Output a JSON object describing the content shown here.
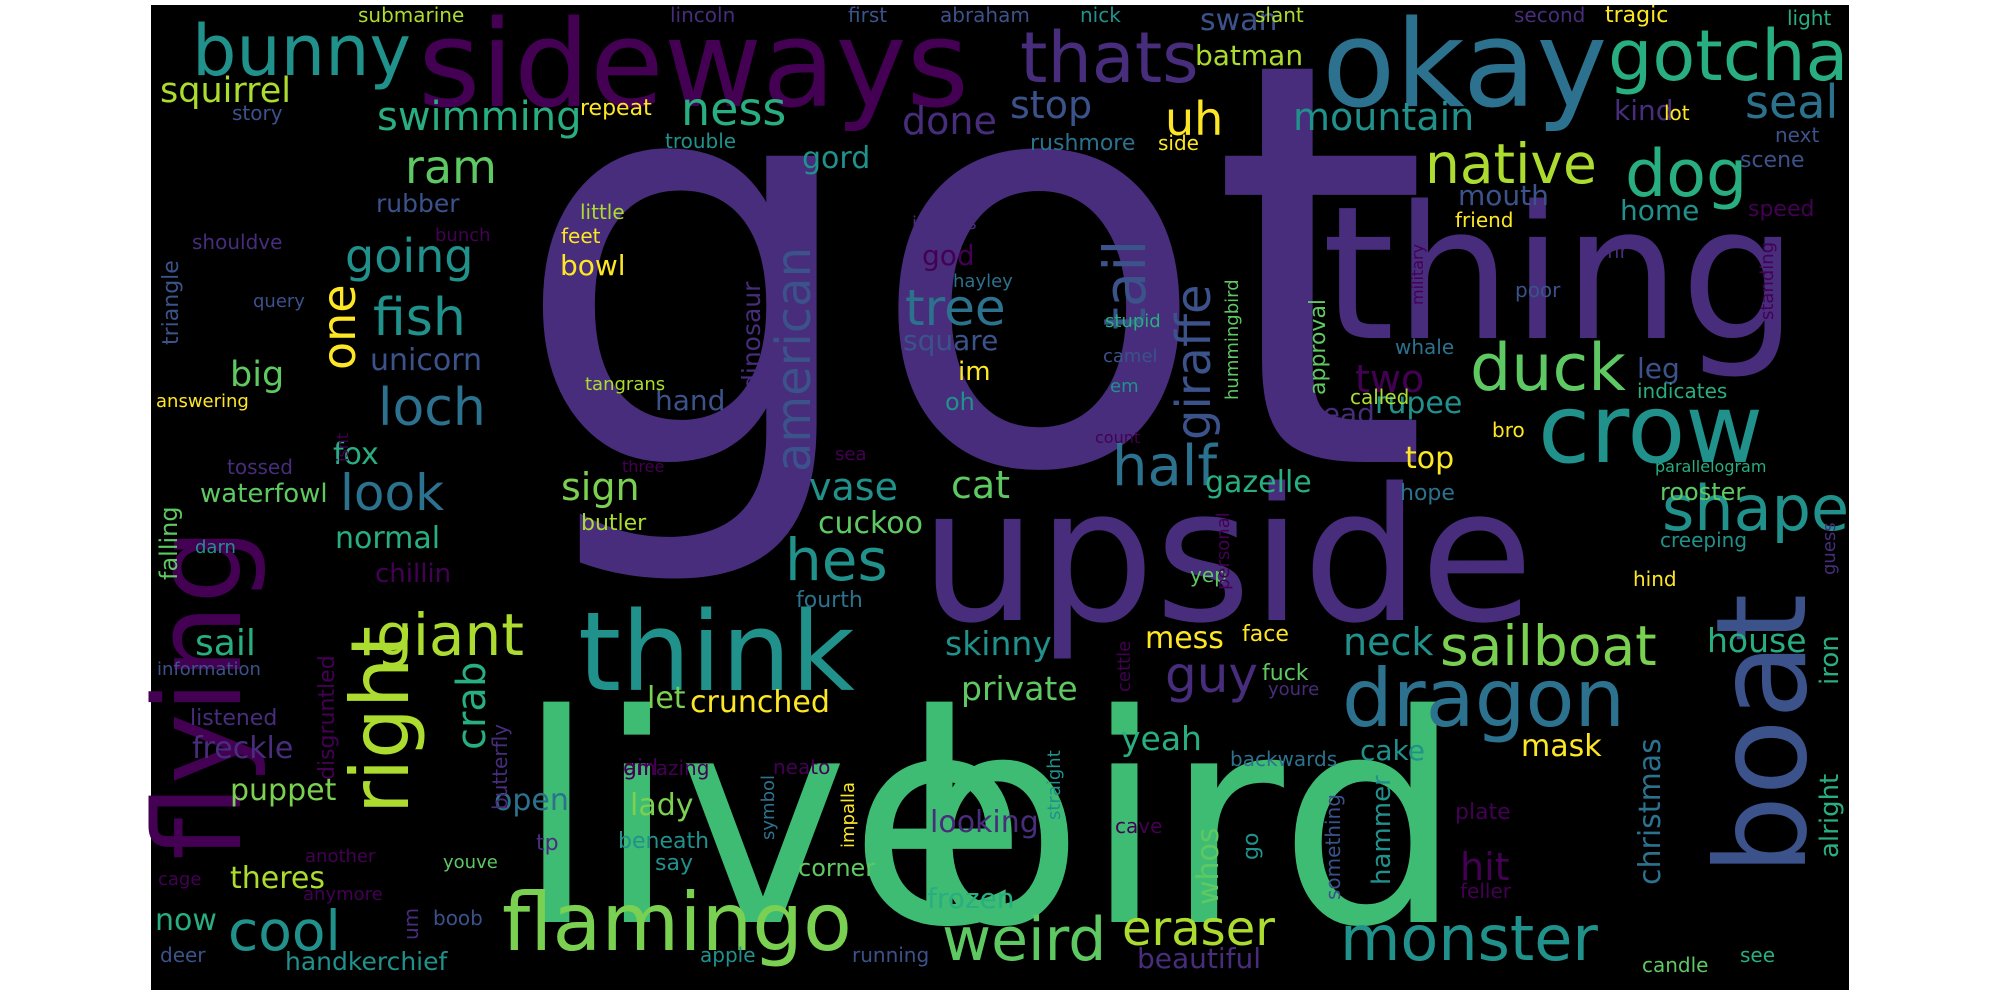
{
  "image": {
    "background": "#000000",
    "palette": [
      "#440154",
      "#472d7b",
      "#3b528b",
      "#2c728e",
      "#21918c",
      "#28ae80",
      "#5ec962",
      "#addc30",
      "#fde725"
    ],
    "words": [
      {
        "text": "got",
        "color": "#472d7b"
      },
      {
        "text": "live",
        "color": "#3fbc73"
      },
      {
        "text": "bird",
        "color": "#3fbc73"
      },
      {
        "text": "upside",
        "color": "#472d7b"
      },
      {
        "text": "thing",
        "color": "#472d7b"
      },
      {
        "text": "sideways",
        "color": "#440154"
      },
      {
        "text": "okay",
        "color": "#2c728e"
      },
      {
        "text": "flying",
        "color": "#440154"
      },
      {
        "text": "boat",
        "color": "#3b528b"
      },
      {
        "text": "think",
        "color": "#21918c"
      },
      {
        "text": "crow",
        "color": "#21918c"
      },
      {
        "text": "dragon",
        "color": "#2c728e"
      },
      {
        "text": "right",
        "color": "#addc30"
      },
      {
        "text": "flamingo",
        "color": "#7ad151"
      },
      {
        "text": "gotcha",
        "color": "#28ae80"
      },
      {
        "text": "bunny",
        "color": "#21918c"
      },
      {
        "text": "thats",
        "color": "#472d7b"
      },
      {
        "text": "dog",
        "color": "#28ae80"
      },
      {
        "text": "duck",
        "color": "#5ec962"
      },
      {
        "text": "shape",
        "color": "#21918c"
      },
      {
        "text": "monster",
        "color": "#21918c"
      },
      {
        "text": "weird",
        "color": "#5ec962"
      },
      {
        "text": "sailboat",
        "color": "#7ad151"
      },
      {
        "text": "native",
        "color": "#addc30"
      },
      {
        "text": "giraffe",
        "color": "#3b528b"
      },
      {
        "text": "tail",
        "color": "#3b528b"
      },
      {
        "text": "half",
        "color": "#2c728e"
      },
      {
        "text": "hes",
        "color": "#21918c"
      },
      {
        "text": "giant",
        "color": "#addc30"
      },
      {
        "text": "american",
        "color": "#3b528b"
      },
      {
        "text": "guy",
        "color": "#472d7b"
      },
      {
        "text": "cool",
        "color": "#21918c"
      },
      {
        "text": "loch",
        "color": "#2c728e"
      },
      {
        "text": "fish",
        "color": "#21918c"
      },
      {
        "text": "look",
        "color": "#2c728e"
      },
      {
        "text": "tree",
        "color": "#2c728e"
      },
      {
        "text": "eraser",
        "color": "#addc30"
      },
      {
        "text": "one",
        "color": "#fde725"
      },
      {
        "text": "uh",
        "color": "#fde725"
      },
      {
        "text": "ness",
        "color": "#28ae80"
      },
      {
        "text": "seal",
        "color": "#2c728e"
      },
      {
        "text": "ram",
        "color": "#5ec962"
      },
      {
        "text": "crab",
        "color": "#28ae80"
      },
      {
        "text": "going",
        "color": "#21918c"
      },
      {
        "text": "swimming",
        "color": "#28ae80"
      },
      {
        "text": "mountain",
        "color": "#21918c"
      },
      {
        "text": "squirrel",
        "color": "#addc30"
      },
      {
        "text": "neck",
        "color": "#21918c"
      },
      {
        "text": "stop",
        "color": "#3b528b"
      },
      {
        "text": "done",
        "color": "#472d7b"
      },
      {
        "text": "cat",
        "color": "#5ec962"
      },
      {
        "text": "vase",
        "color": "#21918c"
      },
      {
        "text": "sign",
        "color": "#7ad151"
      },
      {
        "text": "hit",
        "color": "#440154"
      },
      {
        "text": "two",
        "color": "#440154"
      },
      {
        "text": "christmas",
        "color": "#2c728e"
      },
      {
        "text": "house",
        "color": "#28ae80"
      },
      {
        "text": "sail",
        "color": "#28ae80"
      },
      {
        "text": "skinny",
        "color": "#21918c"
      },
      {
        "text": "private",
        "color": "#5ec962"
      },
      {
        "text": "yeah",
        "color": "#28ae80"
      },
      {
        "text": "mess",
        "color": "#fde725"
      },
      {
        "text": "crunched",
        "color": "#fde725"
      },
      {
        "text": "mask",
        "color": "#fde725"
      },
      {
        "text": "top",
        "color": "#fde725"
      },
      {
        "text": "rupee",
        "color": "#21918c"
      },
      {
        "text": "gazelle",
        "color": "#28ae80"
      },
      {
        "text": "cuckoo",
        "color": "#5ec962"
      },
      {
        "text": "batman",
        "color": "#addc30"
      },
      {
        "text": "swan",
        "color": "#3b528b"
      },
      {
        "text": "kind",
        "color": "#472d7b"
      },
      {
        "text": "mouth",
        "color": "#3b528b"
      },
      {
        "text": "home",
        "color": "#21918c"
      },
      {
        "text": "leg",
        "color": "#3b528b"
      },
      {
        "text": "head",
        "color": "#472d7b"
      },
      {
        "text": "im",
        "color": "#fde725"
      },
      {
        "text": "oh",
        "color": "#21918c"
      },
      {
        "text": "square",
        "color": "#3b528b"
      },
      {
        "text": "unicorn",
        "color": "#3b528b"
      },
      {
        "text": "big",
        "color": "#5ec962"
      },
      {
        "text": "fox",
        "color": "#28ae80"
      },
      {
        "text": "normal",
        "color": "#28ae80"
      },
      {
        "text": "bowl",
        "color": "#fde725"
      },
      {
        "text": "butler",
        "color": "#addc30"
      },
      {
        "text": "dinosaur",
        "color": "#472d7b"
      },
      {
        "text": "gord",
        "color": "#21918c"
      },
      {
        "text": "god",
        "color": "#440154"
      },
      {
        "text": "hand",
        "color": "#3b528b"
      },
      {
        "text": "rubber",
        "color": "#3b528b"
      },
      {
        "text": "triangle",
        "color": "#3b528b"
      },
      {
        "text": "falling",
        "color": "#5ec962"
      },
      {
        "text": "waterfowl",
        "color": "#5ec962"
      },
      {
        "text": "chillin",
        "color": "#440154"
      },
      {
        "text": "freckle",
        "color": "#472d7b"
      },
      {
        "text": "puppet",
        "color": "#7ad151"
      },
      {
        "text": "theres",
        "color": "#addc30"
      },
      {
        "text": "now",
        "color": "#28ae80"
      },
      {
        "text": "handkerchief",
        "color": "#21918c"
      },
      {
        "text": "frozen",
        "color": "#28ae80"
      },
      {
        "text": "looking",
        "color": "#472d7b"
      },
      {
        "text": "lady",
        "color": "#7ad151"
      },
      {
        "text": "open",
        "color": "#2c728e"
      },
      {
        "text": "let",
        "color": "#7ad151"
      },
      {
        "text": "whos",
        "color": "#5ec962"
      },
      {
        "text": "hammer",
        "color": "#21918c"
      },
      {
        "text": "cake",
        "color": "#21918c"
      },
      {
        "text": "beautiful",
        "color": "#472d7b"
      },
      {
        "text": "alright",
        "color": "#28ae80"
      },
      {
        "text": "iron",
        "color": "#28ae80"
      },
      {
        "text": "rooster",
        "color": "#5ec962"
      },
      {
        "text": "hope",
        "color": "#2c728e"
      },
      {
        "text": "creeping",
        "color": "#21918c"
      },
      {
        "text": "face",
        "color": "#fde725"
      },
      {
        "text": "fuck",
        "color": "#5ec962"
      },
      {
        "text": "youre",
        "color": "#472d7b"
      },
      {
        "text": "whale",
        "color": "#2c728e"
      },
      {
        "text": "approval",
        "color": "#5ec962"
      },
      {
        "text": "hummingbird",
        "color": "#5ec962"
      },
      {
        "text": "military",
        "color": "#440154"
      },
      {
        "text": "called",
        "color": "#addc30"
      },
      {
        "text": "indicates",
        "color": "#28ae80"
      },
      {
        "text": "bro",
        "color": "#fde725"
      },
      {
        "text": "parallelogram",
        "color": "#28ae80"
      },
      {
        "text": "poor",
        "color": "#3b528b"
      },
      {
        "text": "mr",
        "color": "#472d7b"
      },
      {
        "text": "friend",
        "color": "#fde725"
      },
      {
        "text": "speed",
        "color": "#440154"
      },
      {
        "text": "scene",
        "color": "#3b528b"
      },
      {
        "text": "next",
        "color": "#3b528b"
      },
      {
        "text": "lot",
        "color": "#fde725"
      },
      {
        "text": "side",
        "color": "#fde725"
      },
      {
        "text": "rushmore",
        "color": "#2c728e"
      },
      {
        "text": "trouble",
        "color": "#21918c"
      },
      {
        "text": "repeat",
        "color": "#fde725"
      },
      {
        "text": "story",
        "color": "#3b528b"
      },
      {
        "text": "submarine",
        "color": "#addc30"
      },
      {
        "text": "lincoln",
        "color": "#472d7b"
      },
      {
        "text": "first",
        "color": "#3b528b"
      },
      {
        "text": "abraham",
        "color": "#3b528b"
      },
      {
        "text": "nick",
        "color": "#21918c"
      },
      {
        "text": "slant",
        "color": "#addc30"
      },
      {
        "text": "second",
        "color": "#472d7b"
      },
      {
        "text": "tragic",
        "color": "#fde725"
      },
      {
        "text": "light",
        "color": "#28ae80"
      },
      {
        "text": "standing",
        "color": "#440154"
      },
      {
        "text": "guess",
        "color": "#472d7b"
      },
      {
        "text": "hind",
        "color": "#fde725"
      },
      {
        "text": "yep",
        "color": "#5ec962"
      },
      {
        "text": "personal",
        "color": "#440154"
      },
      {
        "text": "fourth",
        "color": "#2c728e"
      },
      {
        "text": "amazing",
        "color": "#440154"
      },
      {
        "text": "disgruntled",
        "color": "#440154"
      },
      {
        "text": "butterfly",
        "color": "#472d7b"
      },
      {
        "text": "neato",
        "color": "#440154"
      },
      {
        "text": "cettle",
        "color": "#440154"
      },
      {
        "text": "backwards",
        "color": "#2c728e"
      },
      {
        "text": "straight",
        "color": "#21918c"
      },
      {
        "text": "impalla",
        "color": "#fde725"
      },
      {
        "text": "symbol",
        "color": "#2c728e"
      },
      {
        "text": "girl",
        "color": "#440154"
      },
      {
        "text": "beneath",
        "color": "#21918c"
      },
      {
        "text": "say",
        "color": "#21918c"
      },
      {
        "text": "corner",
        "color": "#5ec962"
      },
      {
        "text": "tp",
        "color": "#472d7b"
      },
      {
        "text": "something",
        "color": "#3b528b"
      },
      {
        "text": "go",
        "color": "#21918c"
      },
      {
        "text": "plate",
        "color": "#440154"
      },
      {
        "text": "cave",
        "color": "#440154"
      },
      {
        "text": "feller",
        "color": "#440154"
      },
      {
        "text": "candle",
        "color": "#5ec962"
      },
      {
        "text": "see",
        "color": "#28ae80"
      },
      {
        "text": "running",
        "color": "#3b528b"
      },
      {
        "text": "apple",
        "color": "#21918c"
      },
      {
        "text": "um",
        "color": "#472d7b"
      },
      {
        "text": "boob",
        "color": "#3b528b"
      },
      {
        "text": "deer",
        "color": "#3b528b"
      },
      {
        "text": "cage",
        "color": "#440154"
      },
      {
        "text": "anymore",
        "color": "#440154"
      },
      {
        "text": "youve",
        "color": "#5ec962"
      },
      {
        "text": "another",
        "color": "#440154"
      },
      {
        "text": "listened",
        "color": "#472d7b"
      },
      {
        "text": "information",
        "color": "#3b528b"
      },
      {
        "text": "darn",
        "color": "#21918c"
      },
      {
        "text": "tossed",
        "color": "#472d7b"
      },
      {
        "text": "answering",
        "color": "#fde725"
      },
      {
        "text": "isnt",
        "color": "#440154"
      },
      {
        "text": "tangrans",
        "color": "#addc30"
      },
      {
        "text": "query",
        "color": "#3b528b"
      },
      {
        "text": "shouldve",
        "color": "#472d7b"
      },
      {
        "text": "feet",
        "color": "#fde725"
      },
      {
        "text": "little",
        "color": "#addc30"
      },
      {
        "text": "bunch",
        "color": "#440154"
      },
      {
        "text": "indians",
        "color": "#472d7b"
      },
      {
        "text": "hayley",
        "color": "#2c728e"
      },
      {
        "text": "stupid",
        "color": "#28ae80"
      },
      {
        "text": "camel",
        "color": "#3b528b"
      },
      {
        "text": "em",
        "color": "#21918c"
      },
      {
        "text": "count",
        "color": "#440154"
      },
      {
        "text": "sea",
        "color": "#440154"
      },
      {
        "text": "three",
        "color": "#440154"
      }
    ]
  }
}
